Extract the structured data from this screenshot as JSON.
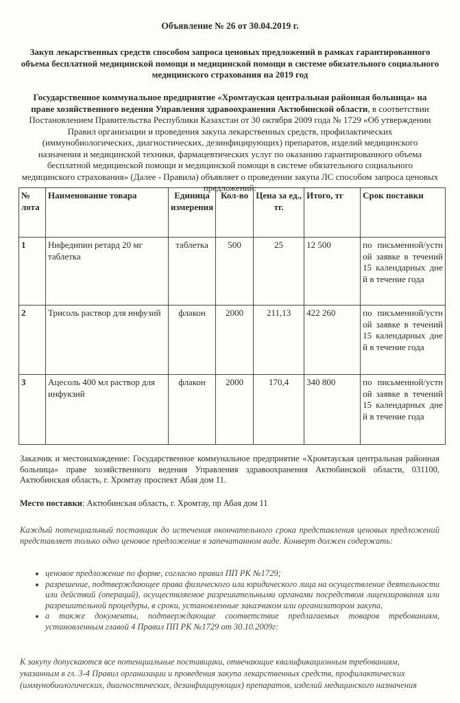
{
  "title": "Объявление № 26 от 30.04.2019 г.",
  "subject": "Закуп лекарственных средств  способом запроса ценовых предложений в рамках гарантированного объема бесплатной медицинской помощи и медицинской помощи в системе обязательного социального медицинского страхования на 2019 год",
  "intro": {
    "org_bold": "Государственное коммунальное предприятие «Хромтауская центральная районная больница» на праве хозяйственного ведения Управления здравоохранения Актюбинской области",
    "text": ", в соответствии Постановлением Правительства Республики Казахстан от 30 октября 2009 года № 1729 «Об утверждении Правил организации и проведения закупа лекарственных средств, профилактических (иммунобиологических, диагностических, дезинфицирующих) препаратов, изделий медицинского назначения и медицинской техники, фармацевтических услуг по оказанию гарантированного объема бесплатной медицинской помощи и медицинской помощи в системе обязательного социального медицинского страхования» (Далее - Правила) объявляет о проведении закупа  ЛС способом запроса ценовых предложений:"
  },
  "table": {
    "headers": [
      "№ лота",
      "Наименование товара",
      "Единица измерения",
      "Кол-во",
      "Цена за ед., тг.",
      "Итого, тг",
      "Срок поставки"
    ],
    "rows": [
      {
        "lot": "1",
        "name": "Нифедипин ретард 20 мг таблетка",
        "unit": "таблетка",
        "qty": "500",
        "price": "25",
        "total": "12 500",
        "term": "по письменной/устной заявке в течений 15 календарных дней в течение года"
      },
      {
        "lot": "2",
        "name": "Трисоль раствор для инфузий",
        "unit": "флакон",
        "qty": "2000",
        "price": "211,13",
        "total": "422 260",
        "term": "по письменной/устной заявке в течений 15 календарных дней в течение года"
      },
      {
        "lot": "3",
        "name": "Ацесоль 400 мл раствор для инфукзий",
        "unit": "флакон",
        "qty": "2000",
        "price": "170,4",
        "total": "340 800",
        "term": "по письменной/устной заявке в течений 15 календарных дней в течение года"
      }
    ]
  },
  "customer": "Заказчик и местонахождение: Государственное коммунальное предприятие «Хромтауская центральная районная больница» праве хозяйственного ведения Управления здравоохранения Актюбинской области, 031100, Актюбинская область, г. Хромтау проспект Абая дом 11.",
  "delivery": {
    "label": "Место поставки",
    "value": ": Актюбинская область, г. Хромтау, пр Абая дом 11"
  },
  "envelope": "Каждый потенциальный поставщик до истечения окончательного срока представления ценовых предложений представляет только одно ценовое предложение в запечатанном виде. Конверт должен содержать:",
  "bullets": [
    "ценовое предложение по форме, согласно правил ПП РК №1729;",
    "разрешение, подтверждающее права физического или юридического лица на осуществление деятельности или действий (операций), осуществляемое разрешительными органами посредством лицензирования или разрешительной процедуры, в сроки, установленные заказчиком или организатором закупа,",
    "а также документы, подтверждающие соответствие предлагаемых товаров требованиям, установленным главой 4 Правил ПП РК №1729 от 30.10.2009г:"
  ],
  "admission": "К закупу допускаются все потенциальные поставщики, отвечающие квалификационным требованиям, указанным в гл. 3-4 Правил организации и проведения закупа лекарственных средств, профилактических (иммунобиологических, диагностических, дезинфицирующих) препаратов, изделий медицинского назначения"
}
